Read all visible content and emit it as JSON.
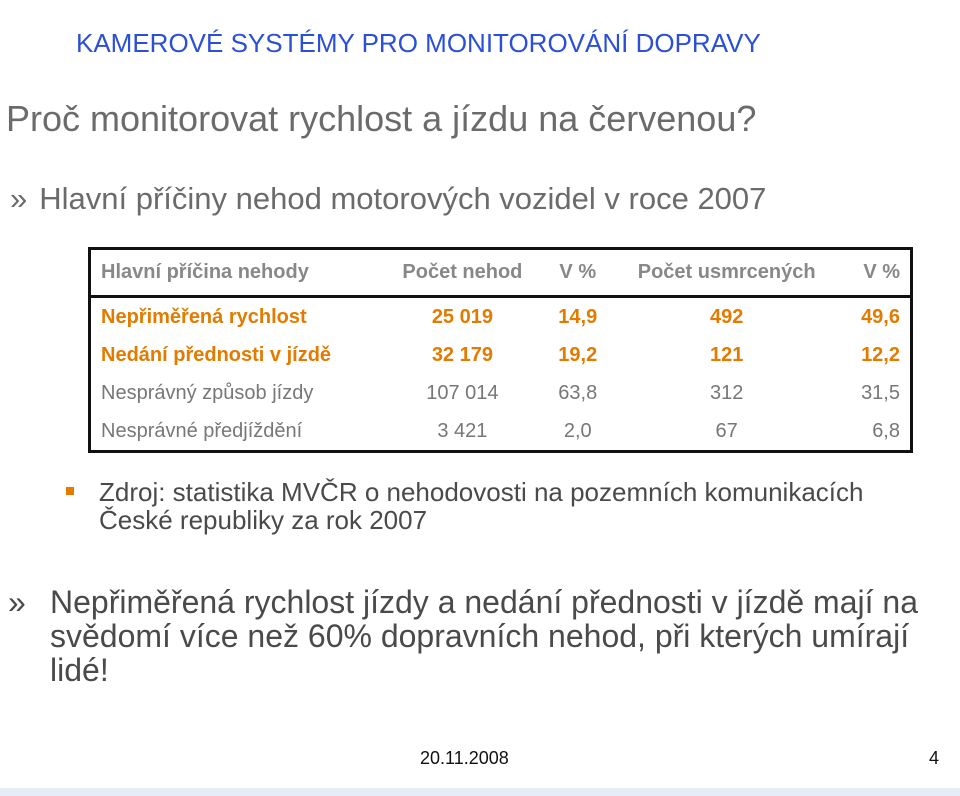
{
  "header": {
    "title": "KAMEROVÉ SYSTÉMY PRO MONITOROVÁNÍ DOPRAVY"
  },
  "slide": {
    "title": "Proč monitorovat rychlost a jízdu na červenou?",
    "bullet_glyph": "»",
    "subtitle": "Hlavní příčiny nehod motorových vozidel  v roce 2007"
  },
  "table": {
    "headers": [
      "Hlavní příčina nehody",
      "Počet nehod",
      "V %",
      "Počet usmrcených",
      "V %"
    ],
    "rows": [
      [
        "Nepřiměřená rychlost",
        "25 019",
        "14,9",
        "492",
        "49,6"
      ],
      [
        "Nedání přednosti v jízdě",
        "32 179",
        "19,2",
        "121",
        "12,2"
      ],
      [
        "Nesprávný způsob jízdy",
        "107 014",
        "63,8",
        "312",
        "31,5"
      ],
      [
        "Nesprávné předjíždění",
        "3 421",
        "2,0",
        "67",
        "6,8"
      ]
    ]
  },
  "source": {
    "text": "Zdroj: statistika MVČR o nehodovosti na pozemních komunikacích České republiky za rok 2007"
  },
  "conclusion": {
    "bullet_glyph": "»",
    "text": "Nepřiměřená rychlost jízdy a nedání přednosti v jízdě mají na svědomí více než 60% dopravních nehod, při kterých umírají lidé!"
  },
  "footer": {
    "date": "20.11.2008",
    "page": "4"
  },
  "colors": {
    "accent": "#e37b00",
    "header_blue": "#2b4fd6",
    "title_gray": "#6b6b6b"
  }
}
